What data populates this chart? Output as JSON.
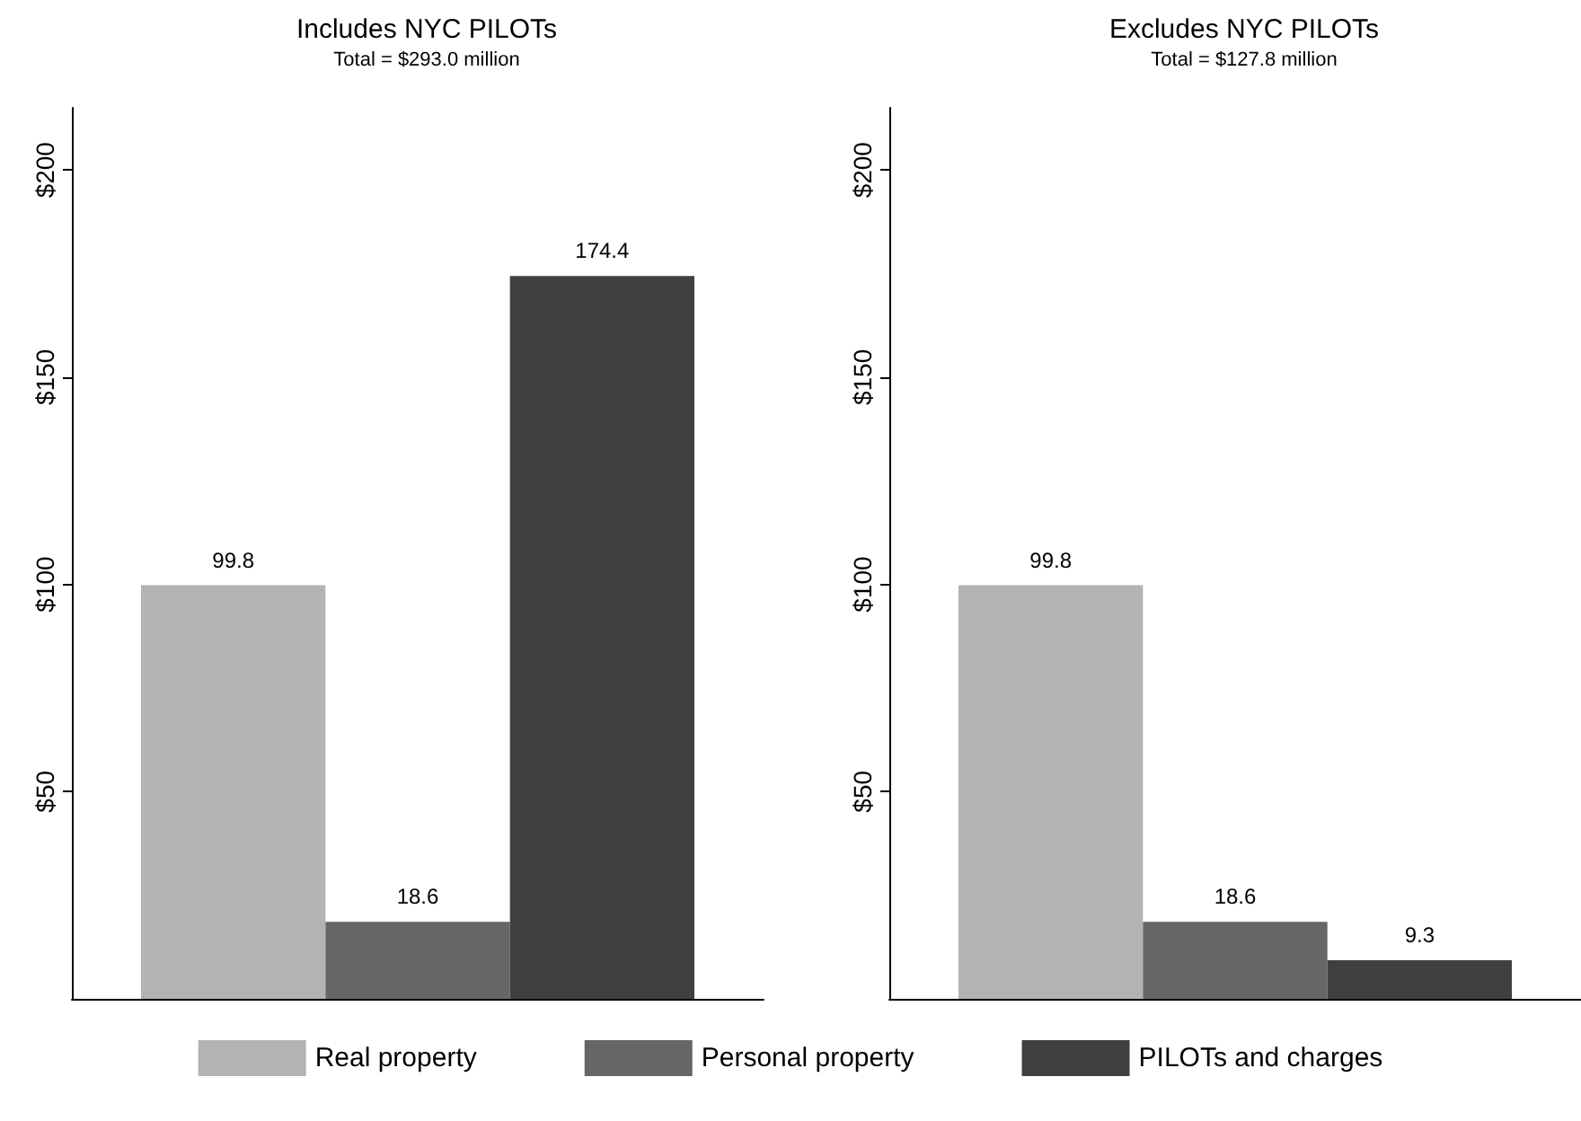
{
  "chart_data": [
    {
      "type": "bar",
      "title": "Includes NYC PILOTs",
      "subtitle": "Total = $293.0 million",
      "categories": [
        null
      ],
      "series": [
        {
          "name": "Real property",
          "color": "#b3b3b3",
          "values": [
            99.8
          ]
        },
        {
          "name": "Personal property",
          "color": "#666666",
          "values": [
            18.6
          ]
        },
        {
          "name": "PILOTs and charges",
          "color": "#404040",
          "values": [
            174.4
          ]
        }
      ],
      "ylim": [
        0,
        215
      ],
      "yticks": [
        {
          "value": 50,
          "label": "$50"
        },
        {
          "value": 100,
          "label": "$100"
        },
        {
          "value": 150,
          "label": "$150"
        },
        {
          "value": 200,
          "label": "$200"
        }
      ],
      "grid": false,
      "legend": "bottom",
      "data_labels": true
    },
    {
      "type": "bar",
      "title": "Excludes NYC PILOTs",
      "subtitle": "Total = $127.8 million",
      "categories": [
        null
      ],
      "series": [
        {
          "color": "#b3b3b3",
          "values": [
            99.8
          ]
        },
        {
          "color": "#666666",
          "values": [
            18.6
          ]
        },
        {
          "color": "#404040",
          "values": [
            9.3
          ]
        }
      ],
      "ylim": [
        0,
        215
      ],
      "yticks": [
        {
          "value": 50,
          "label": "$50"
        },
        {
          "value": 100,
          "label": "$100"
        },
        {
          "value": 150,
          "label": "$150"
        },
        {
          "value": 200,
          "label": "$200"
        }
      ],
      "grid": false,
      "legend": false,
      "data_labels": true
    }
  ]
}
